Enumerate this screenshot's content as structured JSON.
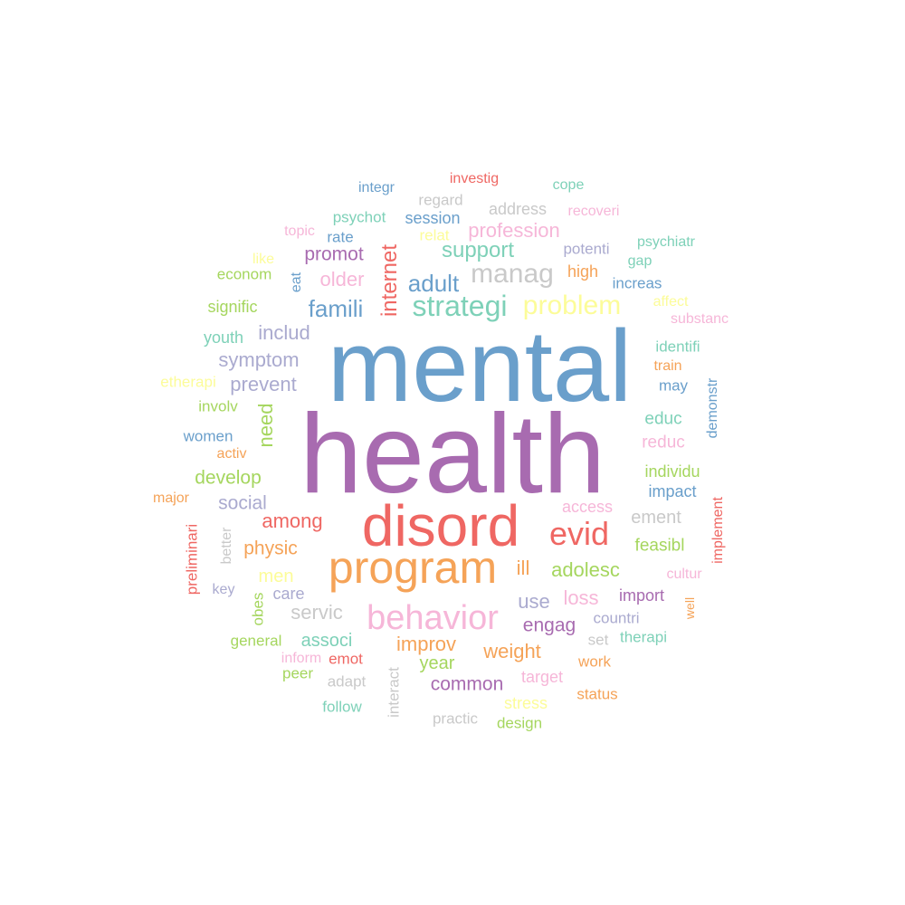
{
  "colors": {
    "blue": "#6a9fcb",
    "purple": "#a86bb0",
    "red": "#ef6763",
    "orange": "#f5a358",
    "pink": "#f6b6d8",
    "teal": "#7ed1b8",
    "gray": "#c9c9c9",
    "green": "#a5d65e",
    "yellow": "#fcfc99",
    "lavender": "#aaaacf"
  },
  "words": [
    {
      "text": "mental",
      "color": "blue"
    },
    {
      "text": "health",
      "color": "purple"
    },
    {
      "text": "disord",
      "color": "red"
    },
    {
      "text": "program",
      "color": "orange"
    },
    {
      "text": "behavior",
      "color": "pink"
    },
    {
      "text": "evid",
      "color": "red"
    },
    {
      "text": "strategi",
      "color": "teal"
    },
    {
      "text": "problem",
      "color": "yellow"
    },
    {
      "text": "manag",
      "color": "gray"
    },
    {
      "text": "adult",
      "color": "blue"
    },
    {
      "text": "internet",
      "color": "red"
    },
    {
      "text": "support",
      "color": "teal"
    },
    {
      "text": "profession",
      "color": "pink"
    },
    {
      "text": "famili",
      "color": "blue"
    },
    {
      "text": "older",
      "color": "pink"
    },
    {
      "text": "promot",
      "color": "purple"
    },
    {
      "text": "includ",
      "color": "lavender"
    },
    {
      "text": "symptom",
      "color": "lavender"
    },
    {
      "text": "prevent",
      "color": "lavender"
    },
    {
      "text": "need",
      "color": "green"
    },
    {
      "text": "develop",
      "color": "green"
    },
    {
      "text": "social",
      "color": "lavender"
    },
    {
      "text": "among",
      "color": "red"
    },
    {
      "text": "physic",
      "color": "orange"
    },
    {
      "text": "men",
      "color": "yellow"
    },
    {
      "text": "care",
      "color": "lavender"
    },
    {
      "text": "servic",
      "color": "gray"
    },
    {
      "text": "associ",
      "color": "teal"
    },
    {
      "text": "improv",
      "color": "orange"
    },
    {
      "text": "weight",
      "color": "orange"
    },
    {
      "text": "year",
      "color": "green"
    },
    {
      "text": "common",
      "color": "purple"
    },
    {
      "text": "adolesc",
      "color": "green"
    },
    {
      "text": "ill",
      "color": "orange"
    },
    {
      "text": "use",
      "color": "lavender"
    },
    {
      "text": "loss",
      "color": "pink"
    },
    {
      "text": "engag",
      "color": "purple"
    },
    {
      "text": "ement",
      "color": "gray"
    },
    {
      "text": "feasibl",
      "color": "green"
    },
    {
      "text": "educ",
      "color": "teal"
    },
    {
      "text": "reduc",
      "color": "pink"
    },
    {
      "text": "individu",
      "color": "green"
    },
    {
      "text": "impact",
      "color": "blue"
    },
    {
      "text": "access",
      "color": "pink"
    },
    {
      "text": "import",
      "color": "purple"
    },
    {
      "text": "countri",
      "color": "lavender"
    },
    {
      "text": "therapi",
      "color": "teal"
    },
    {
      "text": "set",
      "color": "gray"
    },
    {
      "text": "work",
      "color": "orange"
    },
    {
      "text": "target",
      "color": "pink"
    },
    {
      "text": "status",
      "color": "orange"
    },
    {
      "text": "stress",
      "color": "yellow"
    },
    {
      "text": "design",
      "color": "green"
    },
    {
      "text": "practic",
      "color": "gray"
    },
    {
      "text": "interact",
      "color": "gray"
    },
    {
      "text": "follow",
      "color": "teal"
    },
    {
      "text": "adapt",
      "color": "gray"
    },
    {
      "text": "peer",
      "color": "green"
    },
    {
      "text": "emot",
      "color": "red"
    },
    {
      "text": "inform",
      "color": "pink"
    },
    {
      "text": "general",
      "color": "green"
    },
    {
      "text": "obes",
      "color": "green"
    },
    {
      "text": "key",
      "color": "lavender"
    },
    {
      "text": "better",
      "color": "gray"
    },
    {
      "text": "preliminari",
      "color": "red"
    },
    {
      "text": "major",
      "color": "orange"
    },
    {
      "text": "activ",
      "color": "orange"
    },
    {
      "text": "women",
      "color": "blue"
    },
    {
      "text": "involv",
      "color": "green"
    },
    {
      "text": "etherapi",
      "color": "yellow"
    },
    {
      "text": "youth",
      "color": "teal"
    },
    {
      "text": "signific",
      "color": "green"
    },
    {
      "text": "econom",
      "color": "green"
    },
    {
      "text": "like",
      "color": "yellow"
    },
    {
      "text": "eat",
      "color": "blue"
    },
    {
      "text": "topic",
      "color": "pink"
    },
    {
      "text": "psychot",
      "color": "teal"
    },
    {
      "text": "rate",
      "color": "blue"
    },
    {
      "text": "integr",
      "color": "blue"
    },
    {
      "text": "investig",
      "color": "red"
    },
    {
      "text": "regard",
      "color": "gray"
    },
    {
      "text": "session",
      "color": "blue"
    },
    {
      "text": "relat",
      "color": "yellow"
    },
    {
      "text": "address",
      "color": "gray"
    },
    {
      "text": "cope",
      "color": "teal"
    },
    {
      "text": "recoveri",
      "color": "pink"
    },
    {
      "text": "potenti",
      "color": "lavender"
    },
    {
      "text": "psychiatr",
      "color": "teal"
    },
    {
      "text": "gap",
      "color": "teal"
    },
    {
      "text": "high",
      "color": "orange"
    },
    {
      "text": "increas",
      "color": "blue"
    },
    {
      "text": "affect",
      "color": "yellow"
    },
    {
      "text": "substanc",
      "color": "pink"
    },
    {
      "text": "identifi",
      "color": "teal"
    },
    {
      "text": "train",
      "color": "orange"
    },
    {
      "text": "may",
      "color": "blue"
    },
    {
      "text": "demonstr",
      "color": "blue"
    },
    {
      "text": "implement",
      "color": "red"
    },
    {
      "text": "cultur",
      "color": "pink"
    },
    {
      "text": "well",
      "color": "orange"
    }
  ]
}
